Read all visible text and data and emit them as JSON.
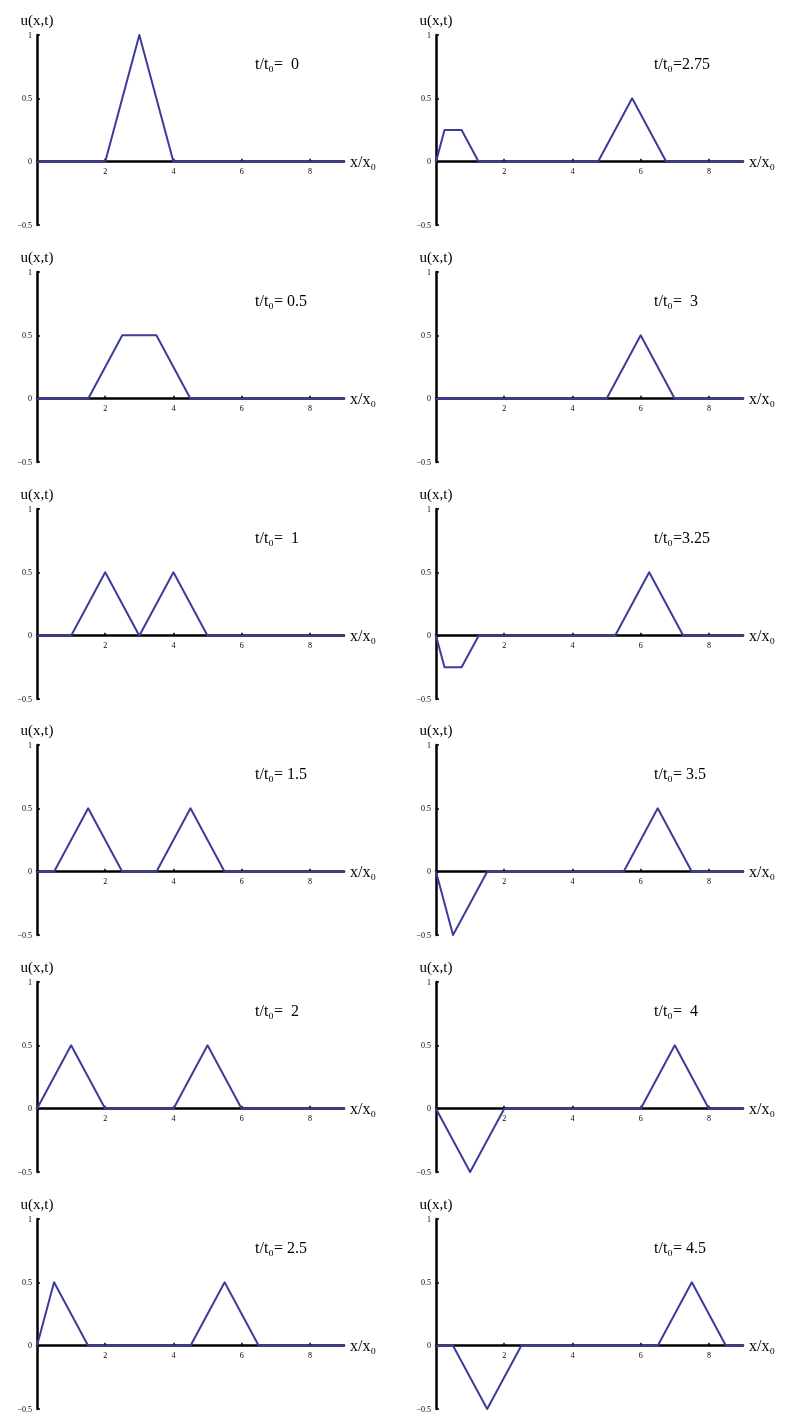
{
  "chart_data": [
    {
      "type": "line",
      "annotations": [
        "t/t₀=  0"
      ],
      "xlabel": "x/x₀",
      "ylabel": "u(x,t)",
      "color": "#3c3c9a",
      "marker": "none",
      "line_style": "solid",
      "xlim": [
        0,
        9
      ],
      "ylim": [
        -0.5,
        1
      ],
      "xticks": [
        2,
        4,
        6,
        8
      ],
      "yticks": [
        -0.5,
        0,
        0.5,
        1
      ],
      "x": [
        0,
        2,
        3,
        4,
        9
      ],
      "values": [
        0,
        0,
        1,
        0,
        0
      ]
    },
    {
      "type": "line",
      "annotations": [
        "t/t₀=2.75"
      ],
      "xlabel": "x/x₀",
      "ylabel": "u(x,t)",
      "color": "#3c3c9a",
      "marker": "none",
      "line_style": "solid",
      "xlim": [
        0,
        9
      ],
      "ylim": [
        -0.5,
        1
      ],
      "xticks": [
        2,
        4,
        6,
        8
      ],
      "yticks": [
        -0.5,
        0,
        0.5,
        1
      ],
      "x": [
        0,
        0.25,
        0.75,
        1.25,
        4.75,
        5.75,
        6.75,
        9
      ],
      "values": [
        0,
        0.25,
        0.25,
        0,
        0,
        0.5,
        0,
        0
      ]
    },
    {
      "type": "line",
      "annotations": [
        "t/t₀= 0.5"
      ],
      "xlabel": "x/x₀",
      "ylabel": "u(x,t)",
      "color": "#3c3c9a",
      "marker": "none",
      "line_style": "solid",
      "xlim": [
        0,
        9
      ],
      "ylim": [
        -0.5,
        1
      ],
      "xticks": [
        2,
        4,
        6,
        8
      ],
      "yticks": [
        -0.5,
        0,
        0.5,
        1
      ],
      "x": [
        0,
        1.5,
        2.5,
        3.5,
        4.5,
        9
      ],
      "values": [
        0,
        0,
        0.5,
        0.5,
        0,
        0
      ]
    },
    {
      "type": "line",
      "annotations": [
        "t/t₀=  3"
      ],
      "xlabel": "x/x₀",
      "ylabel": "u(x,t)",
      "color": "#3c3c9a",
      "marker": "none",
      "line_style": "solid",
      "xlim": [
        0,
        9
      ],
      "ylim": [
        -0.5,
        1
      ],
      "xticks": [
        2,
        4,
        6,
        8
      ],
      "yticks": [
        -0.5,
        0,
        0.5,
        1
      ],
      "x": [
        0,
        5,
        6,
        7,
        9
      ],
      "values": [
        0,
        0,
        0.5,
        0,
        0
      ]
    },
    {
      "type": "line",
      "annotations": [
        "t/t₀=  1"
      ],
      "xlabel": "x/x₀",
      "ylabel": "u(x,t)",
      "color": "#3c3c9a",
      "marker": "none",
      "line_style": "solid",
      "xlim": [
        0,
        9
      ],
      "ylim": [
        -0.5,
        1
      ],
      "xticks": [
        2,
        4,
        6,
        8
      ],
      "yticks": [
        -0.5,
        0,
        0.5,
        1
      ],
      "x": [
        0,
        1,
        2,
        3,
        4,
        5,
        9
      ],
      "values": [
        0,
        0,
        0.5,
        0,
        0.5,
        0,
        0
      ]
    },
    {
      "type": "line",
      "annotations": [
        "t/t₀=3.25"
      ],
      "xlabel": "x/x₀",
      "ylabel": "u(x,t)",
      "color": "#3c3c9a",
      "marker": "none",
      "line_style": "solid",
      "xlim": [
        0,
        9
      ],
      "ylim": [
        -0.5,
        1
      ],
      "xticks": [
        2,
        4,
        6,
        8
      ],
      "yticks": [
        -0.5,
        0,
        0.5,
        1
      ],
      "x": [
        0,
        0.25,
        0.75,
        1.25,
        5.25,
        6.25,
        7.25,
        9
      ],
      "values": [
        0,
        -0.25,
        -0.25,
        0,
        0,
        0.5,
        0,
        0
      ]
    },
    {
      "type": "line",
      "annotations": [
        "t/t₀= 1.5"
      ],
      "xlabel": "x/x₀",
      "ylabel": "u(x,t)",
      "color": "#3c3c9a",
      "marker": "none",
      "line_style": "solid",
      "xlim": [
        0,
        9
      ],
      "ylim": [
        -0.5,
        1
      ],
      "xticks": [
        2,
        4,
        6,
        8
      ],
      "yticks": [
        -0.5,
        0,
        0.5,
        1
      ],
      "x": [
        0,
        0.5,
        1.5,
        2.5,
        3.5,
        4.5,
        5.5,
        9
      ],
      "values": [
        0,
        0,
        0.5,
        0,
        0,
        0.5,
        0,
        0
      ]
    },
    {
      "type": "line",
      "annotations": [
        "t/t₀= 3.5"
      ],
      "xlabel": "x/x₀",
      "ylabel": "u(x,t)",
      "color": "#3c3c9a",
      "marker": "none",
      "line_style": "solid",
      "xlim": [
        0,
        9
      ],
      "ylim": [
        -0.5,
        1
      ],
      "xticks": [
        2,
        4,
        6,
        8
      ],
      "yticks": [
        -0.5,
        0,
        0.5,
        1
      ],
      "x": [
        0,
        0.5,
        1.5,
        5.5,
        6.5,
        7.5,
        9
      ],
      "values": [
        0,
        -0.5,
        0,
        0,
        0.5,
        0,
        0
      ]
    },
    {
      "type": "line",
      "annotations": [
        "t/t₀=  2"
      ],
      "xlabel": "x/x₀",
      "ylabel": "u(x,t)",
      "color": "#3c3c9a",
      "marker": "none",
      "line_style": "solid",
      "xlim": [
        0,
        9
      ],
      "ylim": [
        -0.5,
        1
      ],
      "xticks": [
        2,
        4,
        6,
        8
      ],
      "yticks": [
        -0.5,
        0,
        0.5,
        1
      ],
      "x": [
        0,
        1,
        2,
        4,
        5,
        6,
        9
      ],
      "values": [
        0,
        0.5,
        0,
        0,
        0.5,
        0,
        0
      ]
    },
    {
      "type": "line",
      "annotations": [
        "t/t₀=  4"
      ],
      "xlabel": "x/x₀",
      "ylabel": "u(x,t)",
      "color": "#3c3c9a",
      "marker": "none",
      "line_style": "solid",
      "xlim": [
        0,
        9
      ],
      "ylim": [
        -0.5,
        1
      ],
      "xticks": [
        2,
        4,
        6,
        8
      ],
      "yticks": [
        -0.5,
        0,
        0.5,
        1
      ],
      "x": [
        0,
        1,
        2,
        6,
        7,
        8,
        9
      ],
      "values": [
        0,
        -0.5,
        0,
        0,
        0.5,
        0,
        0
      ]
    },
    {
      "type": "line",
      "annotations": [
        "t/t₀= 2.5"
      ],
      "xlabel": "x/x₀",
      "ylabel": "u(x,t)",
      "color": "#3c3c9a",
      "marker": "none",
      "line_style": "solid",
      "xlim": [
        0,
        9
      ],
      "ylim": [
        -0.5,
        1
      ],
      "xticks": [
        2,
        4,
        6,
        8
      ],
      "yticks": [
        -0.5,
        0,
        0.5,
        1
      ],
      "x": [
        0,
        0.5,
        1.5,
        4.5,
        5.5,
        6.5,
        9
      ],
      "values": [
        0,
        0.5,
        0,
        0,
        0.5,
        0,
        0
      ]
    },
    {
      "type": "line",
      "annotations": [
        "t/t₀= 4.5"
      ],
      "xlabel": "x/x₀",
      "ylabel": "u(x,t)",
      "color": "#3c3c9a",
      "marker": "none",
      "line_style": "solid",
      "xlim": [
        0,
        9
      ],
      "ylim": [
        -0.5,
        1
      ],
      "xticks": [
        2,
        4,
        6,
        8
      ],
      "yticks": [
        -0.5,
        0,
        0.5,
        1
      ],
      "x": [
        0,
        0.5,
        1.5,
        2.5,
        6.5,
        7.5,
        8.5,
        9
      ],
      "values": [
        0,
        0,
        -0.5,
        0,
        0,
        0.5,
        0,
        0
      ]
    }
  ]
}
